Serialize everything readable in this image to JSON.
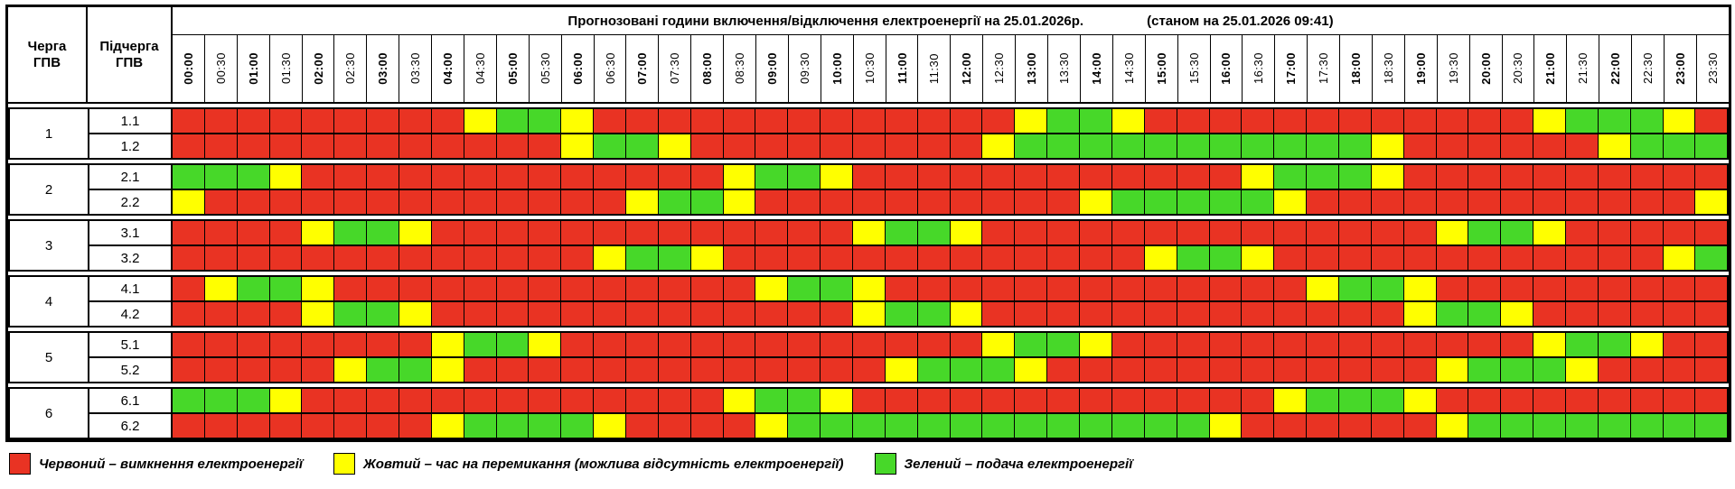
{
  "header": {
    "title": "Прогнозовані години включення/відключення електроенергії на 25.01.2026р.",
    "status": "(станом на 25.01.2026 09:41)",
    "cherga_label": "Черга\nГПВ",
    "pidcherga_label": "Підчерга\nГПВ"
  },
  "colors": {
    "red": "#e93323",
    "yellow": "#ffff00",
    "green": "#47d829"
  },
  "legend": [
    {
      "color": "red",
      "label": "Червоний – вимкнення електроенергії"
    },
    {
      "color": "yellow",
      "label": "Жовтий – час на перемикання (можлива відсутність електроенергії)"
    },
    {
      "color": "green",
      "label": "Зелений – подача електроенергії"
    }
  ],
  "chart_data": {
    "type": "heatmap",
    "title": "Прогнозовані години включення/відключення електроенергії на 25.01.2026р.",
    "subtitle": "(станом на 25.01.2026 09:41)",
    "x": [
      "00:00",
      "00:30",
      "01:00",
      "01:30",
      "02:00",
      "02:30",
      "03:00",
      "03:30",
      "04:00",
      "04:30",
      "05:00",
      "05:30",
      "06:00",
      "06:30",
      "07:00",
      "07:30",
      "08:00",
      "08:30",
      "09:00",
      "09:30",
      "10:00",
      "10:30",
      "11:00",
      "11:30",
      "12:00",
      "12:30",
      "13:00",
      "13:30",
      "14:00",
      "14:30",
      "15:00",
      "15:30",
      "16:00",
      "16:30",
      "17:00",
      "17:30",
      "18:00",
      "18:30",
      "19:00",
      "19:30",
      "20:00",
      "20:30",
      "21:00",
      "21:30",
      "22:00",
      "22:30",
      "23:00",
      "23:30"
    ],
    "value_legend": {
      "R": "Червоний – вимкнення електроенергії",
      "Y": "Жовтий – час на перемикання (можлива відсутність електроенергії)",
      "G": "Зелений – подача електроенергії"
    },
    "queues": [
      {
        "queue": "1",
        "subrows": [
          {
            "label": "1.1",
            "pattern": "RRRRRRRRRYGGYRRRRRRRRRRRRRYGGYRRRRRRRRRRRRYGGGYR"
          },
          {
            "label": "1.2",
            "pattern": "RRRRRRRRRRRRYGGYRRRRRRRRRYGGGGGGGGGGGYRRRRRRYGGG"
          }
        ]
      },
      {
        "queue": "2",
        "subrows": [
          {
            "label": "2.1",
            "pattern": "GGGYRRRRRRRRRRRRRYGGYRRRRRRRRRRRRYGGGYRRRRRRRRRR"
          },
          {
            "label": "2.2",
            "pattern": "YRRRRRRRRRRRRRYGGYRRRRRRRRRRYGGGGGYRRRRRRRRRRRRY"
          }
        ]
      },
      {
        "queue": "3",
        "subrows": [
          {
            "label": "3.1",
            "pattern": "RRRRYGGYRRRRRRRRRRRRRYGGYRRRRRRRRRRRRRRYGGYRRRRR"
          },
          {
            "label": "3.2",
            "pattern": "RRRRRRRRRRRRRYGGYRRRRRRRRRRRRRYGGYRRRRRRRRRRRRYG"
          }
        ]
      },
      {
        "queue": "4",
        "subrows": [
          {
            "label": "4.1",
            "pattern": "RYGGYRRRRRRRRRRRRRYGGYRRRRRRRRRRRRRYGGYRRRRRRRRR"
          },
          {
            "label": "4.2",
            "pattern": "RRRRYGGYRRRRRRRRRRRRRYGGYRRRRRRRRRRRRRYGGYRRRRRR"
          }
        ]
      },
      {
        "queue": "5",
        "subrows": [
          {
            "label": "5.1",
            "pattern": "RRRRRRRRYGGYRRRRRRRRRRRRRYGGYRRRRRRRRRRRRRYGGYRR"
          },
          {
            "label": "5.2",
            "pattern": "RRRRRYGGYRRRRRRRRRRRRRYGGGYRRRRRRRRRRRRYGGGYRRRR"
          }
        ]
      },
      {
        "queue": "6",
        "subrows": [
          {
            "label": "6.1",
            "pattern": "GGGYRRRRRRRRRRRRRYGGYRRRRRRRRRRRRRYGGGYRRRRRRRRR"
          },
          {
            "label": "6.2",
            "pattern": "RRRRRRRRYGGGGYRRRRYGGGGGGGGGGGGGYRRRRRRYGGGGGGGG"
          }
        ]
      }
    ]
  }
}
